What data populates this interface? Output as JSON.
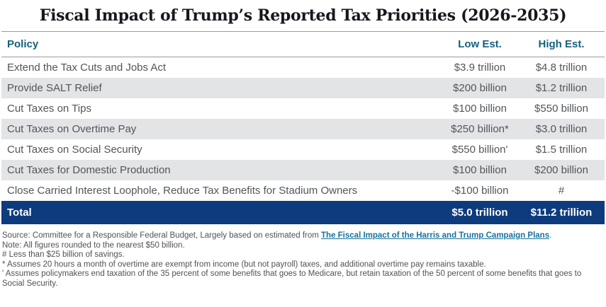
{
  "title": "Fiscal Impact of Trump’s Reported Tax Priorities (2026-2035)",
  "chart_data": {
    "type": "table",
    "title": "Fiscal Impact of Trump’s Reported Tax Priorities (2026-2035)",
    "columns": [
      "Policy",
      "Low Est.",
      "High Est."
    ],
    "rows": [
      {
        "policy": "Extend the Tax Cuts and Jobs Act",
        "low": "$3.9 trillion",
        "high": "$4.8 trillion",
        "low_billions": 3900,
        "high_billions": 4800
      },
      {
        "policy": "Provide SALT Relief",
        "low": "$200 billion",
        "high": "$1.2 trillion",
        "low_billions": 200,
        "high_billions": 1200
      },
      {
        "policy": "Cut Taxes on Tips",
        "low": "$100 billion",
        "high": "$550 billion",
        "low_billions": 100,
        "high_billions": 550
      },
      {
        "policy": "Cut Taxes on Overtime Pay",
        "low": "$250 billion*",
        "high": "$3.0 trillion",
        "low_billions": 250,
        "high_billions": 3000
      },
      {
        "policy": "Cut Taxes on Social Security",
        "low": "$550 billion'",
        "high": "$1.5 trillion",
        "low_billions": 550,
        "high_billions": 1500
      },
      {
        "policy": "Cut Taxes for Domestic Production",
        "low": "$100 billion",
        "high": "$200 billion",
        "low_billions": 100,
        "high_billions": 200
      },
      {
        "policy": "Close Carried Interest Loophole, Reduce Tax Benefits for Stadium Owners",
        "low": "-$100 billion",
        "high": "#",
        "low_billions": -100,
        "high_billions": null
      }
    ],
    "total": {
      "label": "Total",
      "low": "$5.0 trillion",
      "high": "$11.2 trillion",
      "low_billions": 5000,
      "high_billions": 11200
    }
  },
  "footnotes": {
    "source_prefix": "Source: Committee for a Responsible Federal Budget, Largely based on estimated from ",
    "source_link": "The Fiscal Impact of the Harris and Trump Campaign Plans",
    "source_suffix": ".",
    "note_rounding": "Note: All figures rounded to the nearest $50 billion.",
    "note_hash": "# Less than $25 billion of savings.",
    "note_asterisk": "* Assumes 20 hours a month of overtime are exempt from income (but not payroll) taxes, and additional overtime pay remains taxable.",
    "note_prime": "' Assumes policymakers end taxation of the 35 percent of some benefits that goes to Medicare, but retain taxation of the 50 percent of some benefits that goes to Social Security."
  },
  "colors": {
    "header_text": "#15607e",
    "total_row_bg": "#0d3b7d",
    "alt_row_bg": "#e3e4e6",
    "body_text": "#52555a",
    "link": "#17729b",
    "title_text": "#17171f",
    "rule_line": "#9b9b9b"
  }
}
